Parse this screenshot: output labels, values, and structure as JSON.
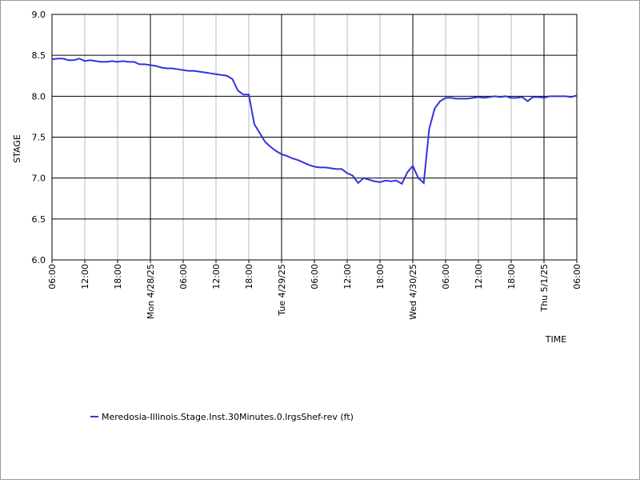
{
  "chart_data": {
    "type": "line",
    "x_label": "TIME",
    "y_label": "STAGE",
    "x": [
      0,
      1,
      2,
      3,
      4,
      5,
      6,
      7,
      8,
      9,
      10,
      11,
      12,
      13,
      14,
      15,
      16,
      17,
      18,
      19,
      20,
      21,
      22,
      23,
      24,
      25,
      26,
      27,
      28,
      29,
      30,
      31,
      32,
      33,
      34,
      35,
      36,
      37,
      38,
      39,
      40,
      41,
      42,
      43,
      44,
      45,
      46,
      47,
      48,
      49,
      50,
      51,
      52,
      53,
      54,
      55,
      56,
      57,
      58,
      59,
      60,
      61,
      62,
      63,
      64,
      65,
      66,
      67,
      68,
      69,
      70,
      71,
      72,
      73,
      74,
      75,
      76,
      77,
      78,
      79,
      80,
      81,
      82,
      83,
      84,
      85,
      86,
      87,
      88,
      89,
      90,
      91,
      92,
      93,
      94,
      95,
      96
    ],
    "series": [
      {
        "name": "Meredosia-Illinois.Stage.Inst.30Minutes.0.lrgsShef-rev (ft)",
        "color": "#3333dd",
        "values": [
          8.45,
          8.46,
          8.46,
          8.44,
          8.44,
          8.46,
          8.43,
          8.44,
          8.43,
          8.42,
          8.42,
          8.43,
          8.42,
          8.43,
          8.42,
          8.42,
          8.39,
          8.39,
          8.38,
          8.37,
          8.35,
          8.34,
          8.34,
          8.33,
          8.32,
          8.31,
          8.31,
          8.3,
          8.29,
          8.28,
          8.27,
          8.26,
          8.25,
          8.21,
          8.07,
          8.02,
          8.02,
          7.66,
          7.55,
          7.44,
          7.38,
          7.33,
          7.29,
          7.27,
          7.24,
          7.22,
          7.19,
          7.16,
          7.14,
          7.13,
          7.13,
          7.12,
          7.11,
          7.11,
          7.06,
          7.03,
          6.94,
          7.0,
          6.98,
          6.96,
          6.95,
          6.97,
          6.96,
          6.97,
          6.93,
          7.07,
          7.15,
          7.0,
          6.94,
          7.6,
          7.85,
          7.94,
          7.98,
          7.98,
          7.97,
          7.97,
          7.97,
          7.98,
          7.99,
          7.98,
          7.99,
          8.0,
          7.99,
          8.0,
          7.98,
          7.98,
          7.99,
          7.94,
          7.99,
          7.99,
          7.98,
          8.0,
          8.0,
          8.0,
          8.0,
          7.99,
          8.01
        ]
      }
    ],
    "xlim": [
      0,
      96
    ],
    "xticks": [
      {
        "value": 0,
        "label": "06:00"
      },
      {
        "value": 6,
        "label": "12:00"
      },
      {
        "value": 12,
        "label": "18:00"
      },
      {
        "value": 18,
        "label": "Mon 4/28/25"
      },
      {
        "value": 24,
        "label": "06:00"
      },
      {
        "value": 30,
        "label": "12:00"
      },
      {
        "value": 36,
        "label": "18:00"
      },
      {
        "value": 42,
        "label": "Tue 4/29/25"
      },
      {
        "value": 48,
        "label": "06:00"
      },
      {
        "value": 54,
        "label": "12:00"
      },
      {
        "value": 60,
        "label": "18:00"
      },
      {
        "value": 66,
        "label": "Wed 4/30/25"
      },
      {
        "value": 72,
        "label": "06:00"
      },
      {
        "value": 78,
        "label": "12:00"
      },
      {
        "value": 84,
        "label": "18:00"
      },
      {
        "value": 90,
        "label": "Thu 5/1/25"
      },
      {
        "value": 96,
        "label": "06:00"
      }
    ],
    "ylim": [
      6,
      9
    ],
    "yticks": [
      {
        "value": 6,
        "label": "6.0"
      },
      6.5,
      {
        "value": 7,
        "label": "7.0"
      },
      7.5,
      {
        "value": 8,
        "label": "8.0"
      },
      8.5,
      {
        "value": 9,
        "label": "9.0"
      }
    ],
    "grid": true
  }
}
